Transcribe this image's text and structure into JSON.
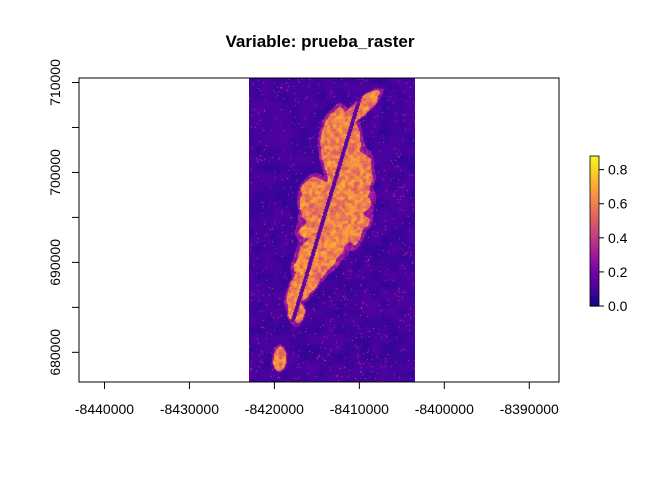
{
  "chart_data": {
    "type": "heatmap",
    "title": "Variable: prueba_raster",
    "xlabel": "",
    "ylabel": "",
    "xlim": [
      -8443000,
      -8386500
    ],
    "ylim": [
      676700,
      710500
    ],
    "x_ticks": [
      -8440000,
      -8430000,
      -8420000,
      -8410000,
      -8400000,
      -8390000
    ],
    "x_tick_labels": [
      "-8440000",
      "-8430000",
      "-8420000",
      "-8410000",
      "-8400000",
      "-8390000"
    ],
    "y_ticks": [
      680000,
      685000,
      690000,
      695000,
      700000,
      705000,
      710000
    ],
    "y_tick_labels": [
      "680000",
      "",
      "690000",
      "",
      "700000",
      "",
      "710000"
    ],
    "raster_extent": {
      "xmin": -8423000,
      "xmax": -8403500,
      "ymin": 676700,
      "ymax": 710500
    },
    "value_range": [
      0,
      0.88
    ],
    "legend": {
      "position": "right",
      "ticks": [
        0.0,
        0.2,
        0.4,
        0.6,
        0.8
      ],
      "tick_labels": [
        "0.0",
        "0.2",
        "0.4",
        "0.6",
        "0.8"
      ]
    },
    "colormap": [
      "#0d0887",
      "#46039f",
      "#7201a8",
      "#9c179e",
      "#bd3786",
      "#d8576b",
      "#ed7953",
      "#fb9f3a",
      "#fdca26",
      "#f0f921"
    ],
    "grid": false
  }
}
